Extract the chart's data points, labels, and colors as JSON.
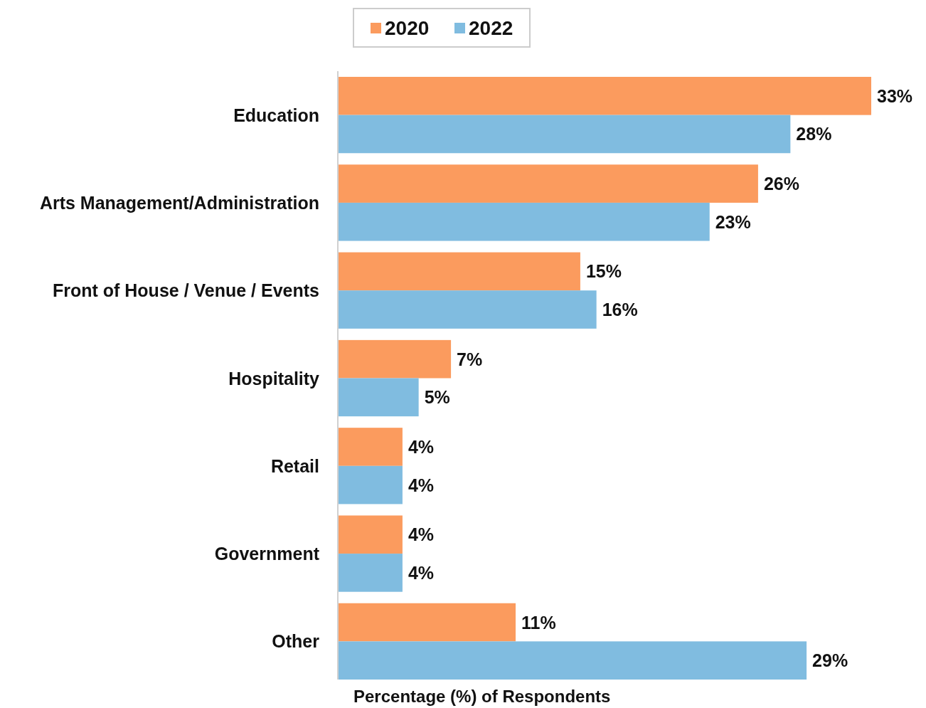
{
  "chart_data": {
    "type": "bar",
    "orientation": "horizontal",
    "xlabel": "Percentage (%) of Respondents",
    "categories": [
      "Education",
      "Arts Management/Administration",
      "Front of House / Venue / Events",
      "Hospitality",
      "Retail",
      "Government",
      "Other"
    ],
    "series": [
      {
        "name": "2020",
        "color": "#fb9b5e",
        "values": [
          33,
          26,
          15,
          7,
          4,
          4,
          11
        ],
        "value_labels": [
          "33%",
          "26%",
          "15%",
          "7%",
          "4%",
          "4%",
          "11%"
        ]
      },
      {
        "name": "2022",
        "color": "#80bce0",
        "values": [
          28,
          23,
          16,
          5,
          4,
          4,
          29
        ],
        "value_labels": [
          "28%",
          "23%",
          "16%",
          "5%",
          "4%",
          "4%",
          "29%"
        ]
      }
    ],
    "legend": "top"
  }
}
